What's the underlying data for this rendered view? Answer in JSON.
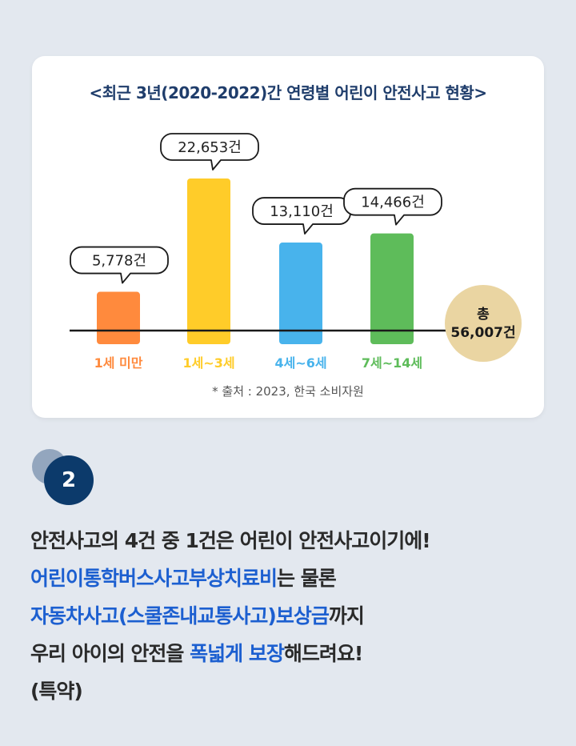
{
  "chart_data": {
    "type": "bar",
    "title": "<최근 3년(2020-2022)간 연령별 어린이 안전사고 현황>",
    "categories": [
      "1세 미만",
      "1세~3세",
      "4세~6세",
      "7세~14세"
    ],
    "values": [
      5778,
      22653,
      13110,
      14466
    ],
    "value_labels": [
      "5,778건",
      "22,653건",
      "13,110건",
      "14,466건"
    ],
    "colors": [
      "#ff8a3d",
      "#ffcc29",
      "#48b3ec",
      "#5ebc5a"
    ],
    "total_label": "총",
    "total_value": "56,007건",
    "total_color": "#ead5a2",
    "source": "* 출처 : 2023, 한국 소비자원",
    "xlabel": "",
    "ylabel": ""
  },
  "step_number": "2",
  "body": {
    "line1": "안전사고의 4건 중 1건은 어린이 안전사고이기에!",
    "line2_highlight": "어린이통학버스사고부상치료비",
    "line2_rest": "는 물론",
    "line3_highlight": "자동차사고(스쿨존내교통사고)보상금",
    "line3_rest": "까지",
    "line4_start": "우리 아이의 안전을 ",
    "line4_highlight": "폭넓게 보장",
    "line4_rest": "해드려요!",
    "line5": "(특약)"
  }
}
